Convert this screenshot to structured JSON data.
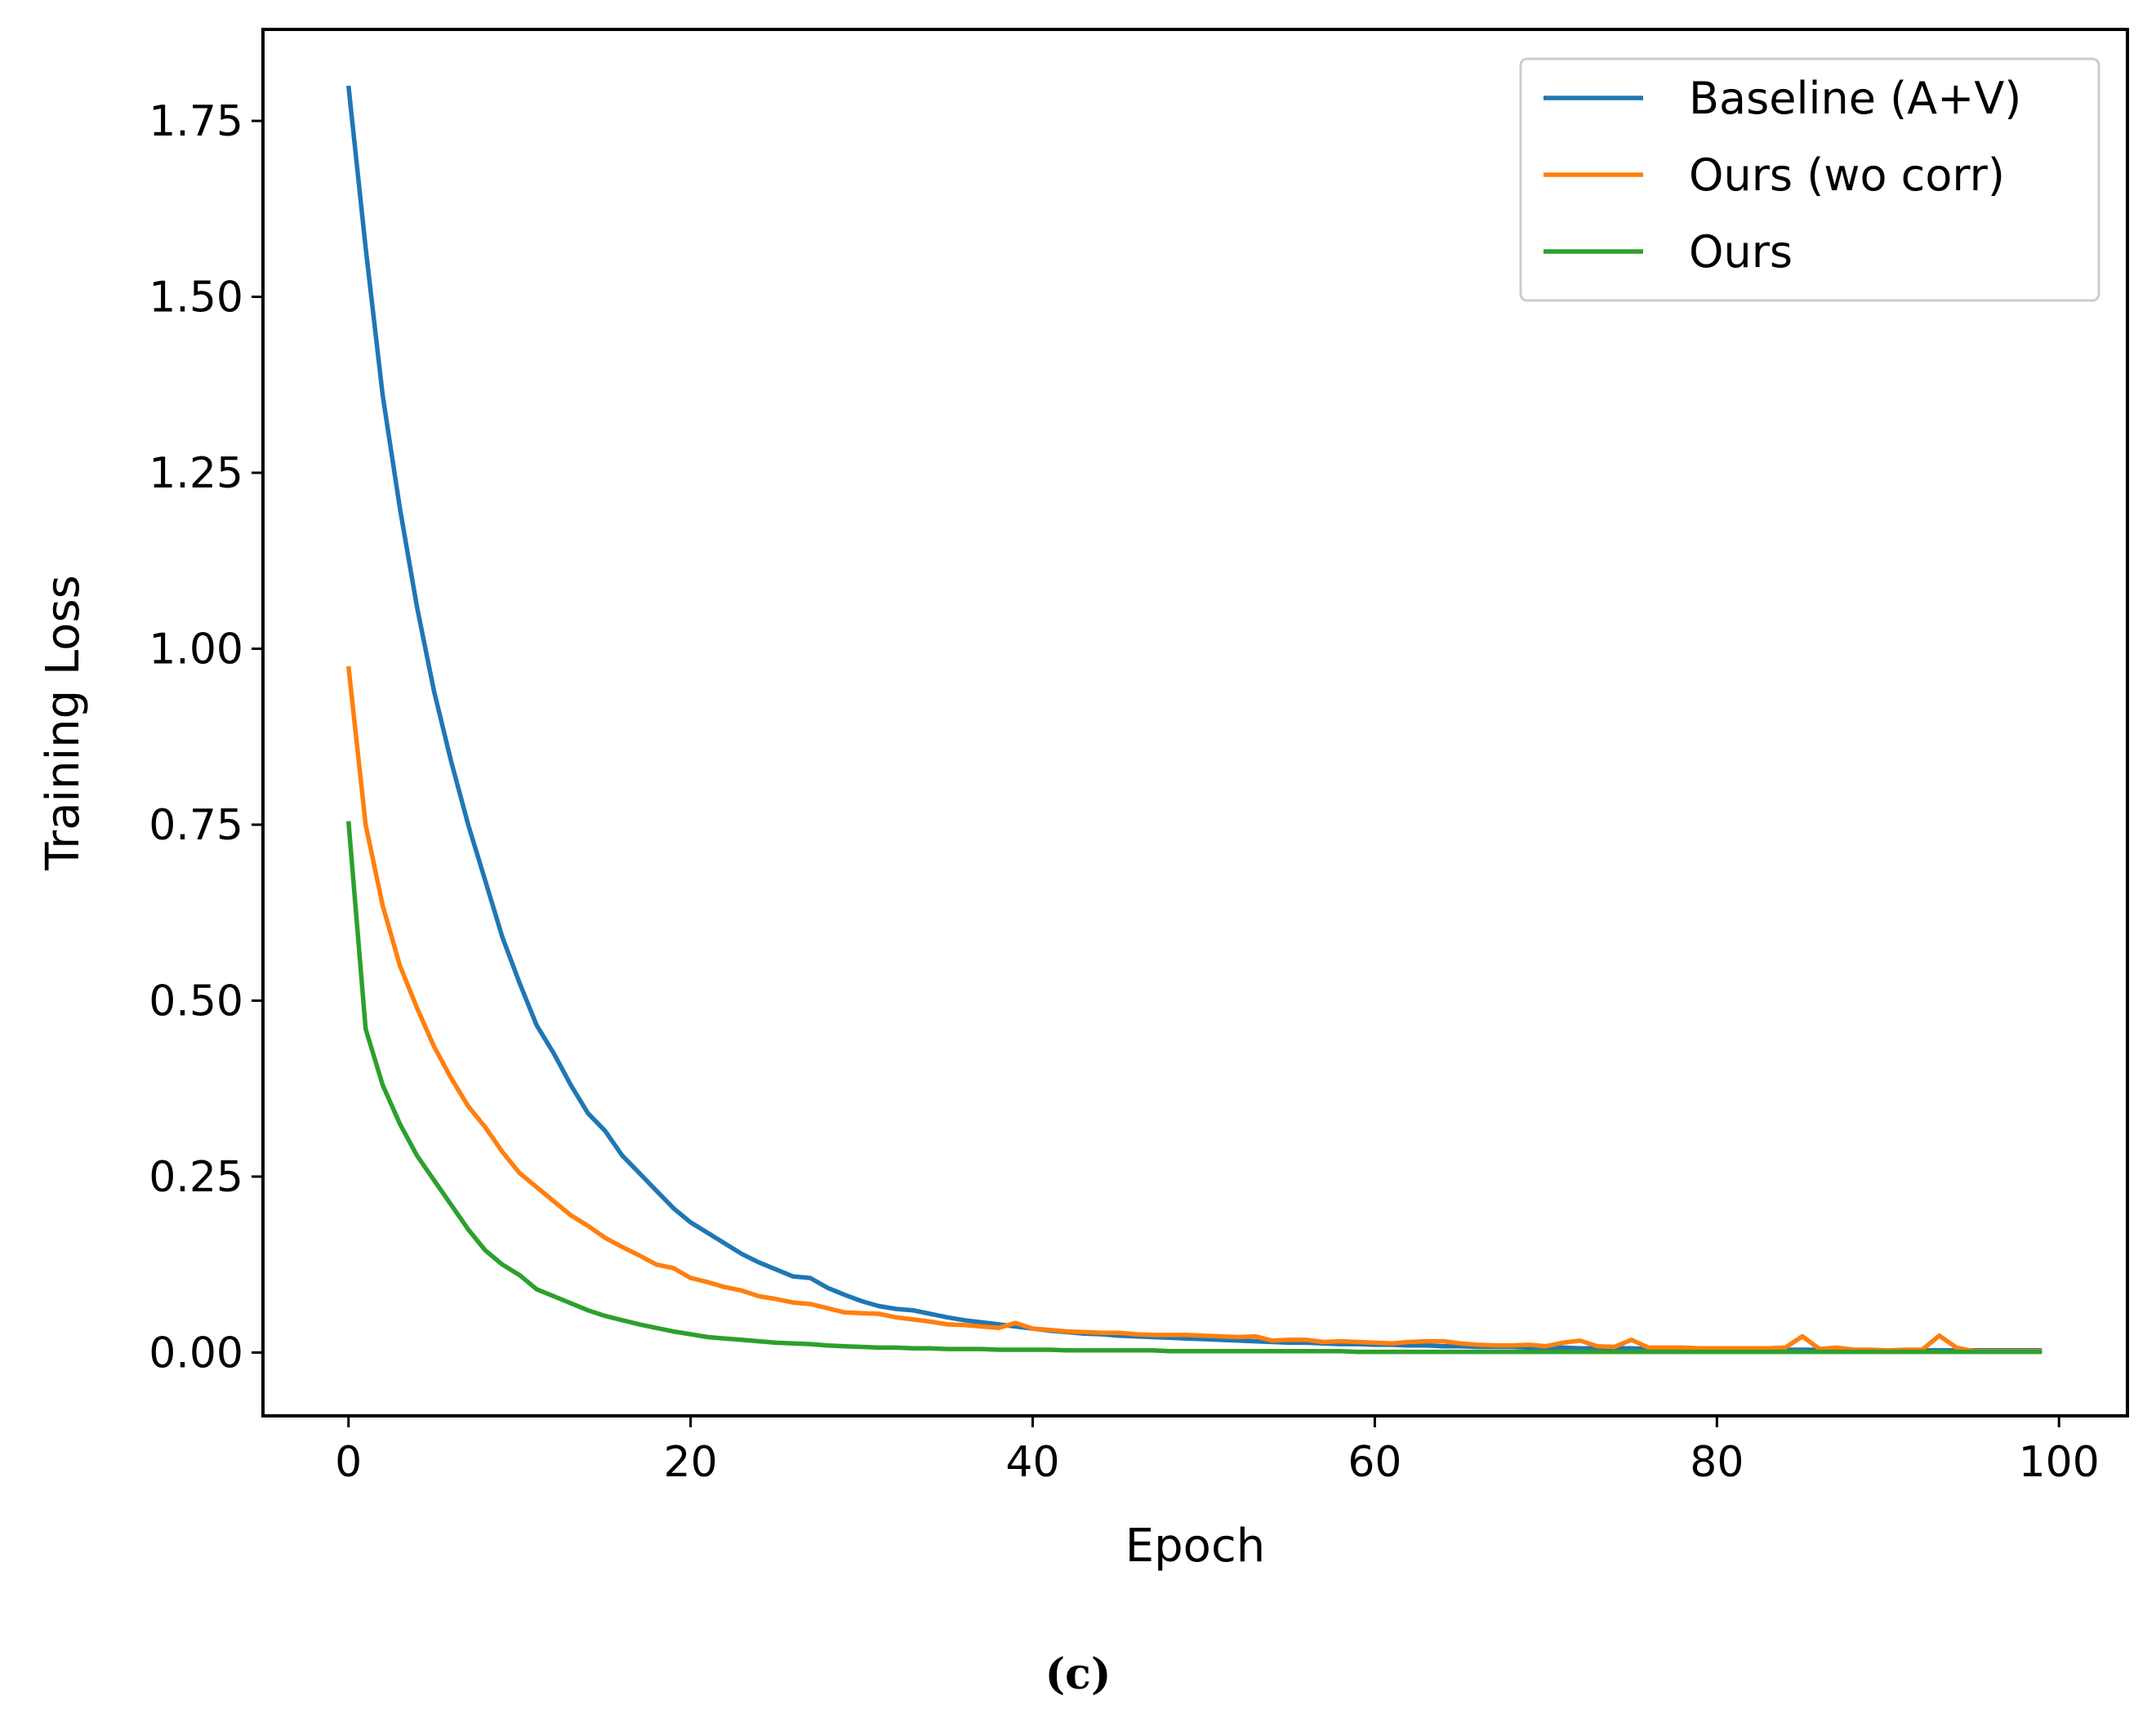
{
  "chart_data": {
    "type": "line",
    "xlabel": "Epoch",
    "ylabel": "Training Loss",
    "caption": "(c)",
    "xlim": [
      -5,
      104
    ],
    "ylim": [
      -0.09,
      1.88
    ],
    "grid": false,
    "legend_position": "top-right",
    "xticks": [
      0,
      20,
      40,
      60,
      80,
      100
    ],
    "xtick_labels": [
      "0",
      "20",
      "40",
      "60",
      "80",
      "100"
    ],
    "yticks": [
      0,
      0.25,
      0.5,
      0.75,
      1.0,
      1.25,
      1.5,
      1.75
    ],
    "ytick_labels": [
      "0.00",
      "0.25",
      "0.50",
      "0.75",
      "1.00",
      "1.25",
      "1.50",
      "1.75"
    ],
    "series": [
      {
        "name": "Baseline (A+V)",
        "color": "#1f77b4",
        "values": [
          1.8,
          1.57,
          1.36,
          1.2,
          1.06,
          0.94,
          0.84,
          0.75,
          0.67,
          0.59,
          0.525,
          0.465,
          0.425,
          0.38,
          0.34,
          0.315,
          0.28,
          0.255,
          0.23,
          0.205,
          0.185,
          0.17,
          0.155,
          0.14,
          0.128,
          0.118,
          0.108,
          0.106,
          0.092,
          0.082,
          0.073,
          0.066,
          0.062,
          0.06,
          0.055,
          0.05,
          0.046,
          0.043,
          0.04,
          0.037,
          0.034,
          0.031,
          0.029,
          0.027,
          0.026,
          0.024,
          0.023,
          0.022,
          0.021,
          0.02,
          0.019,
          0.018,
          0.017,
          0.016,
          0.015,
          0.014,
          0.014,
          0.013,
          0.012,
          0.012,
          0.011,
          0.011,
          0.01,
          0.01,
          0.009,
          0.009,
          0.008,
          0.008,
          0.008,
          0.007,
          0.007,
          0.007,
          0.006,
          0.006,
          0.006,
          0.006,
          0.005,
          0.005,
          0.005,
          0.005,
          0.005,
          0.004,
          0.004,
          0.004,
          0.004,
          0.004,
          0.004,
          0.004,
          0.003,
          0.003,
          0.003,
          0.003,
          0.003,
          0.003,
          0.003,
          0.003,
          0.003,
          0.003,
          0.003,
          0.003
        ]
      },
      {
        "name": "Ours (wo corr)",
        "color": "#ff7f0e",
        "values": [
          0.975,
          0.75,
          0.635,
          0.55,
          0.49,
          0.435,
          0.39,
          0.35,
          0.32,
          0.285,
          0.255,
          0.235,
          0.215,
          0.195,
          0.18,
          0.163,
          0.15,
          0.138,
          0.125,
          0.12,
          0.106,
          0.1,
          0.093,
          0.088,
          0.08,
          0.076,
          0.071,
          0.069,
          0.063,
          0.057,
          0.056,
          0.055,
          0.05,
          0.047,
          0.044,
          0.04,
          0.039,
          0.037,
          0.035,
          0.042,
          0.034,
          0.032,
          0.03,
          0.029,
          0.028,
          0.028,
          0.026,
          0.025,
          0.025,
          0.025,
          0.024,
          0.023,
          0.022,
          0.023,
          0.017,
          0.018,
          0.018,
          0.015,
          0.016,
          0.015,
          0.014,
          0.013,
          0.015,
          0.016,
          0.016,
          0.013,
          0.011,
          0.01,
          0.01,
          0.011,
          0.009,
          0.014,
          0.017,
          0.009,
          0.008,
          0.018,
          0.007,
          0.007,
          0.007,
          0.006,
          0.006,
          0.006,
          0.006,
          0.006,
          0.007,
          0.023,
          0.005,
          0.007,
          0.004,
          0.004,
          0.003,
          0.004,
          0.004,
          0.024,
          0.007,
          0.002,
          0.002,
          0.002,
          0.002,
          0.002
        ]
      },
      {
        "name": "Ours",
        "color": "#2ca02c",
        "values": [
          0.755,
          0.46,
          0.38,
          0.325,
          0.28,
          0.245,
          0.21,
          0.175,
          0.145,
          0.125,
          0.11,
          0.09,
          0.08,
          0.07,
          0.06,
          0.052,
          0.046,
          0.04,
          0.035,
          0.03,
          0.026,
          0.022,
          0.02,
          0.018,
          0.016,
          0.014,
          0.013,
          0.012,
          0.01,
          0.009,
          0.008,
          0.007,
          0.007,
          0.006,
          0.006,
          0.005,
          0.005,
          0.005,
          0.004,
          0.004,
          0.004,
          0.004,
          0.003,
          0.003,
          0.003,
          0.003,
          0.003,
          0.003,
          0.002,
          0.002,
          0.002,
          0.002,
          0.002,
          0.002,
          0.002,
          0.002,
          0.002,
          0.002,
          0.002,
          0.001,
          0.001,
          0.001,
          0.001,
          0.001,
          0.001,
          0.001,
          0.001,
          0.001,
          0.001,
          0.001,
          0.001,
          0.001,
          0.001,
          0.001,
          0.001,
          0.001,
          0.001,
          0.001,
          0.001,
          0.001,
          0.001,
          0.001,
          0.001,
          0.001,
          0.001,
          0.001,
          0.001,
          0.001,
          0.001,
          0.001,
          0.001,
          0.001,
          0.001,
          0.001,
          0.001,
          0.001,
          0.001,
          0.001,
          0.001,
          0.001
        ]
      }
    ]
  }
}
